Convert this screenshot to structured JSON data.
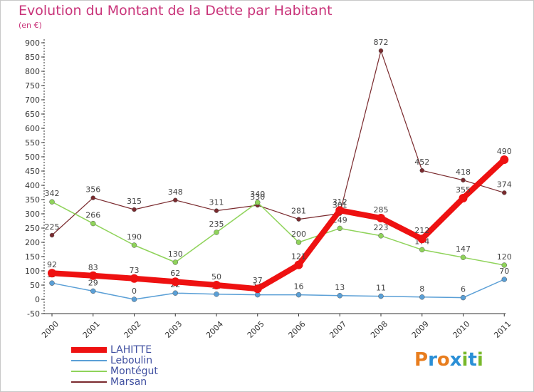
{
  "title": "Evolution du Montant de la Dette par Habitant",
  "subtitle": "(en €)",
  "logo": {
    "letters": [
      "P",
      "r",
      "o",
      "x",
      "i",
      "t",
      "i"
    ],
    "colors": [
      "#e87d1e",
      "#2a8fd6",
      "#e87d1e",
      "#2a8fd6",
      "#78b82a",
      "#2a8fd6",
      "#78b82a"
    ]
  },
  "chart_data": {
    "type": "line",
    "x": [
      "2000",
      "2001",
      "2002",
      "2003",
      "2004",
      "2005",
      "2006",
      "2007",
      "2008",
      "2009",
      "2010",
      "2011"
    ],
    "ylim": [
      -50,
      900
    ],
    "yticks": [
      "900",
      "850",
      "800",
      "750",
      "700",
      "650",
      "600",
      "550",
      "500",
      "450",
      "400",
      "350",
      "300",
      "250",
      "200",
      "150",
      "100",
      "50",
      "0",
      "-50"
    ],
    "grid": false,
    "legend_position": "bottom-left",
    "series": [
      {
        "name": "Marsan",
        "color": "#7a2a2e",
        "values": [
          225,
          356,
          315,
          348,
          311,
          330,
          281,
          301,
          872,
          452,
          418,
          374
        ],
        "labels": [
          "225",
          "356",
          "315",
          "348",
          "311",
          "330",
          "281",
          "301",
          "872",
          "452",
          "418",
          "374"
        ]
      },
      {
        "name": "Montégut",
        "color": "#8fd35a",
        "values": [
          342,
          266,
          190,
          130,
          235,
          340,
          200,
          249,
          223,
          174,
          147,
          120
        ],
        "labels": [
          "342",
          "266",
          "190",
          "130",
          "235",
          "340",
          "200",
          "249",
          "223",
          "174",
          "147",
          "120"
        ]
      },
      {
        "name": "Leboulin",
        "color": "#5a9fd6",
        "values": [
          57,
          29,
          0,
          22,
          18,
          16,
          16,
          13,
          11,
          8,
          6,
          70
        ],
        "labels": [
          "57",
          "29",
          "0",
          "22",
          "18",
          "16",
          "16",
          "13",
          "11",
          "8",
          "6",
          "70"
        ]
      },
      {
        "name": "LAHITTE",
        "color": "#ee1111",
        "values": [
          92,
          83,
          73,
          62,
          50,
          37,
          121,
          312,
          285,
          212,
          355,
          490
        ],
        "labels": [
          "92",
          "83",
          "73",
          "62",
          "50",
          "37",
          "121",
          "312",
          "285",
          "212",
          "355",
          "490"
        ]
      }
    ]
  }
}
